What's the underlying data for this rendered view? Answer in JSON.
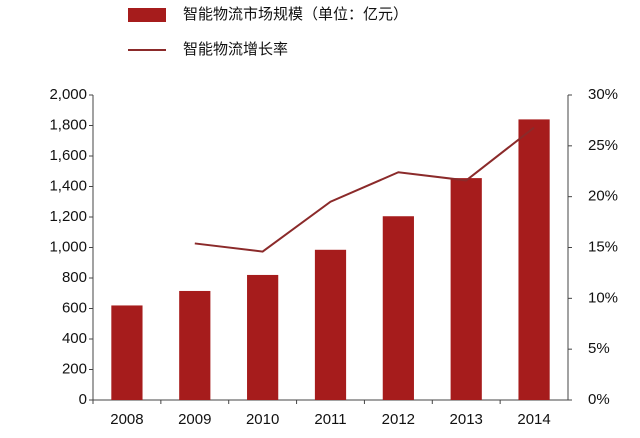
{
  "chart_data": {
    "type": "bar",
    "categories": [
      "2008",
      "2009",
      "2010",
      "2011",
      "2012",
      "2013",
      "2014"
    ],
    "series": [
      {
        "name": "智能物流市场规模（单位：亿元）",
        "color": "#a61c1c",
        "type": "bar",
        "values": [
          620,
          715,
          820,
          985,
          1205,
          1455,
          1840
        ]
      },
      {
        "name": "智能物流增长率",
        "color": "#8b2a2a",
        "type": "line",
        "axis": "y2",
        "values": [
          null,
          15.4,
          14.6,
          19.5,
          22.4,
          21.6,
          26.8
        ]
      }
    ],
    "ylim": [
      0,
      2000
    ],
    "yticks": [
      0,
      200,
      400,
      600,
      800,
      {
        "value": 1000,
        "label": "1,000"
      },
      {
        "value": 1200,
        "label": "1,200"
      },
      {
        "value": 1400,
        "label": "1,400"
      },
      {
        "value": 1600,
        "label": "1,600"
      },
      {
        "value": 1800,
        "label": "1,800"
      },
      {
        "value": 2000,
        "label": "2,000"
      }
    ],
    "y2lim": [
      0,
      30
    ],
    "y2ticks": [
      {
        "value": 0,
        "label": "0%"
      },
      {
        "value": 5,
        "label": "5%"
      },
      {
        "value": 10,
        "label": "10%"
      },
      {
        "value": 15,
        "label": "15%"
      },
      {
        "value": 20,
        "label": "20%"
      },
      {
        "value": 25,
        "label": "25%"
      },
      {
        "value": 30,
        "label": "30%"
      }
    ],
    "grid": false
  }
}
